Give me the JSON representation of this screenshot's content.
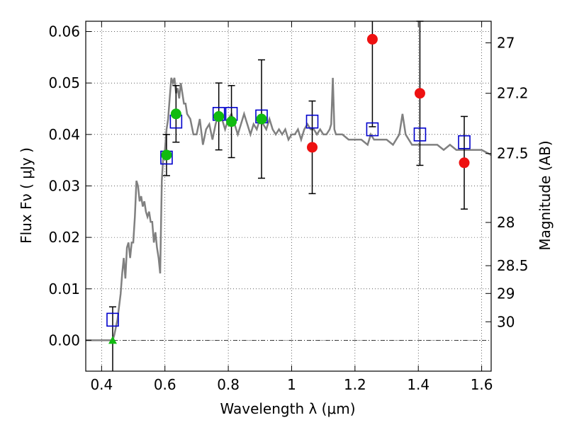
{
  "chart_data": {
    "type": "scatter",
    "title": "",
    "xlabel": "Wavelength  λ (μm)",
    "ylabel": "Flux  Fν  ( μJy )",
    "ylabel_right": "Magnitude (AB)",
    "xlim": [
      0.35,
      1.63
    ],
    "ylim": [
      -0.006,
      0.062
    ],
    "grid": true,
    "x_ticks": [
      {
        "value": 0.4,
        "label": "0.4"
      },
      {
        "value": 0.6,
        "label": "0.6"
      },
      {
        "value": 0.8,
        "label": "0.8"
      },
      {
        "value": 1.0,
        "label": "1"
      },
      {
        "value": 1.2,
        "label": "1.2"
      },
      {
        "value": 1.4,
        "label": "1.4"
      },
      {
        "value": 1.6,
        "label": "1.6"
      }
    ],
    "y_ticks": [
      {
        "value": 0.0,
        "label": "0.00"
      },
      {
        "value": 0.01,
        "label": "0.01"
      },
      {
        "value": 0.02,
        "label": "0.02"
      },
      {
        "value": 0.03,
        "label": "0.03"
      },
      {
        "value": 0.04,
        "label": "0.04"
      },
      {
        "value": 0.05,
        "label": "0.05"
      },
      {
        "value": 0.06,
        "label": "0.06"
      }
    ],
    "right_ticks": [
      {
        "flux": 0.0578,
        "label": "27"
      },
      {
        "flux": 0.048,
        "label": "27.2"
      },
      {
        "flux": 0.0363,
        "label": "27.5"
      },
      {
        "flux": 0.0229,
        "label": "28"
      },
      {
        "flux": 0.0145,
        "label": "28.5"
      },
      {
        "flux": 0.0091,
        "label": "29"
      },
      {
        "flux": 0.0036,
        "label": "30"
      }
    ],
    "colors": {
      "model": "#808080",
      "model_fit": "#0000cc",
      "green_points": "#11bb11",
      "red_points": "#ee1111",
      "error_bars": "#000000"
    },
    "model_spectrum": {
      "x": [
        0.35,
        0.43,
        0.435,
        0.44,
        0.45,
        0.46,
        0.465,
        0.47,
        0.475,
        0.48,
        0.485,
        0.49,
        0.495,
        0.5,
        0.505,
        0.51,
        0.515,
        0.52,
        0.525,
        0.53,
        0.535,
        0.54,
        0.545,
        0.55,
        0.555,
        0.56,
        0.565,
        0.57,
        0.575,
        0.58,
        0.585,
        0.59,
        0.595,
        0.6,
        0.605,
        0.61,
        0.615,
        0.62,
        0.625,
        0.63,
        0.635,
        0.64,
        0.645,
        0.65,
        0.655,
        0.66,
        0.665,
        0.67,
        0.68,
        0.69,
        0.7,
        0.71,
        0.72,
        0.73,
        0.74,
        0.75,
        0.76,
        0.77,
        0.78,
        0.79,
        0.8,
        0.81,
        0.82,
        0.83,
        0.84,
        0.85,
        0.86,
        0.87,
        0.88,
        0.89,
        0.9,
        0.91,
        0.92,
        0.93,
        0.94,
        0.95,
        0.96,
        0.97,
        0.98,
        0.99,
        1.0,
        1.01,
        1.02,
        1.03,
        1.04,
        1.05,
        1.06,
        1.07,
        1.08,
        1.09,
        1.1,
        1.11,
        1.12,
        1.125,
        1.13,
        1.135,
        1.14,
        1.16,
        1.18,
        1.2,
        1.22,
        1.24,
        1.25,
        1.26,
        1.28,
        1.3,
        1.32,
        1.34,
        1.35,
        1.36,
        1.37,
        1.38,
        1.39,
        1.4,
        1.42,
        1.44,
        1.46,
        1.48,
        1.5,
        1.52,
        1.54,
        1.56,
        1.58,
        1.6,
        1.63
      ],
      "y": [
        0.0,
        0.0,
        0.0,
        0.001,
        0.004,
        0.009,
        0.013,
        0.016,
        0.012,
        0.018,
        0.019,
        0.016,
        0.019,
        0.019,
        0.024,
        0.031,
        0.03,
        0.027,
        0.028,
        0.026,
        0.027,
        0.025,
        0.024,
        0.025,
        0.023,
        0.023,
        0.019,
        0.021,
        0.018,
        0.016,
        0.013,
        0.031,
        0.036,
        0.037,
        0.041,
        0.043,
        0.047,
        0.051,
        0.05,
        0.051,
        0.048,
        0.049,
        0.047,
        0.05,
        0.048,
        0.046,
        0.046,
        0.044,
        0.043,
        0.04,
        0.04,
        0.043,
        0.038,
        0.041,
        0.042,
        0.039,
        0.042,
        0.044,
        0.043,
        0.041,
        0.043,
        0.044,
        0.042,
        0.04,
        0.042,
        0.044,
        0.042,
        0.04,
        0.042,
        0.041,
        0.043,
        0.042,
        0.041,
        0.043,
        0.041,
        0.04,
        0.041,
        0.04,
        0.041,
        0.039,
        0.04,
        0.04,
        0.041,
        0.039,
        0.041,
        0.042,
        0.041,
        0.041,
        0.04,
        0.041,
        0.04,
        0.04,
        0.041,
        0.042,
        0.051,
        0.041,
        0.04,
        0.04,
        0.039,
        0.039,
        0.039,
        0.038,
        0.04,
        0.039,
        0.039,
        0.039,
        0.038,
        0.04,
        0.044,
        0.04,
        0.039,
        0.038,
        0.038,
        0.038,
        0.038,
        0.038,
        0.038,
        0.037,
        0.038,
        0.037,
        0.037,
        0.037,
        0.037,
        0.037,
        0.036
      ]
    },
    "model_fit_points": {
      "x": [
        0.435,
        0.605,
        0.635,
        0.77,
        0.81,
        0.905,
        1.065,
        1.255,
        1.405,
        1.545
      ],
      "y": [
        0.004,
        0.0355,
        0.0425,
        0.044,
        0.044,
        0.0435,
        0.0425,
        0.041,
        0.04,
        0.0385
      ]
    },
    "detections_green": {
      "x": [
        0.605,
        0.635,
        0.77,
        0.81,
        0.905
      ],
      "y": [
        0.036,
        0.044,
        0.0435,
        0.0425,
        0.043
      ],
      "err": [
        0.004,
        0.0055,
        0.0065,
        0.007,
        0.0115
      ]
    },
    "detections_red": {
      "x": [
        1.065,
        1.255,
        1.405,
        1.545
      ],
      "y": [
        0.0375,
        0.0585,
        0.048,
        0.0345
      ],
      "err": [
        0.009,
        0.017,
        0.014,
        0.009
      ]
    },
    "upper_limits": {
      "x": [
        0.435
      ],
      "y": [
        0.0
      ],
      "err": [
        0.0065
      ]
    }
  }
}
